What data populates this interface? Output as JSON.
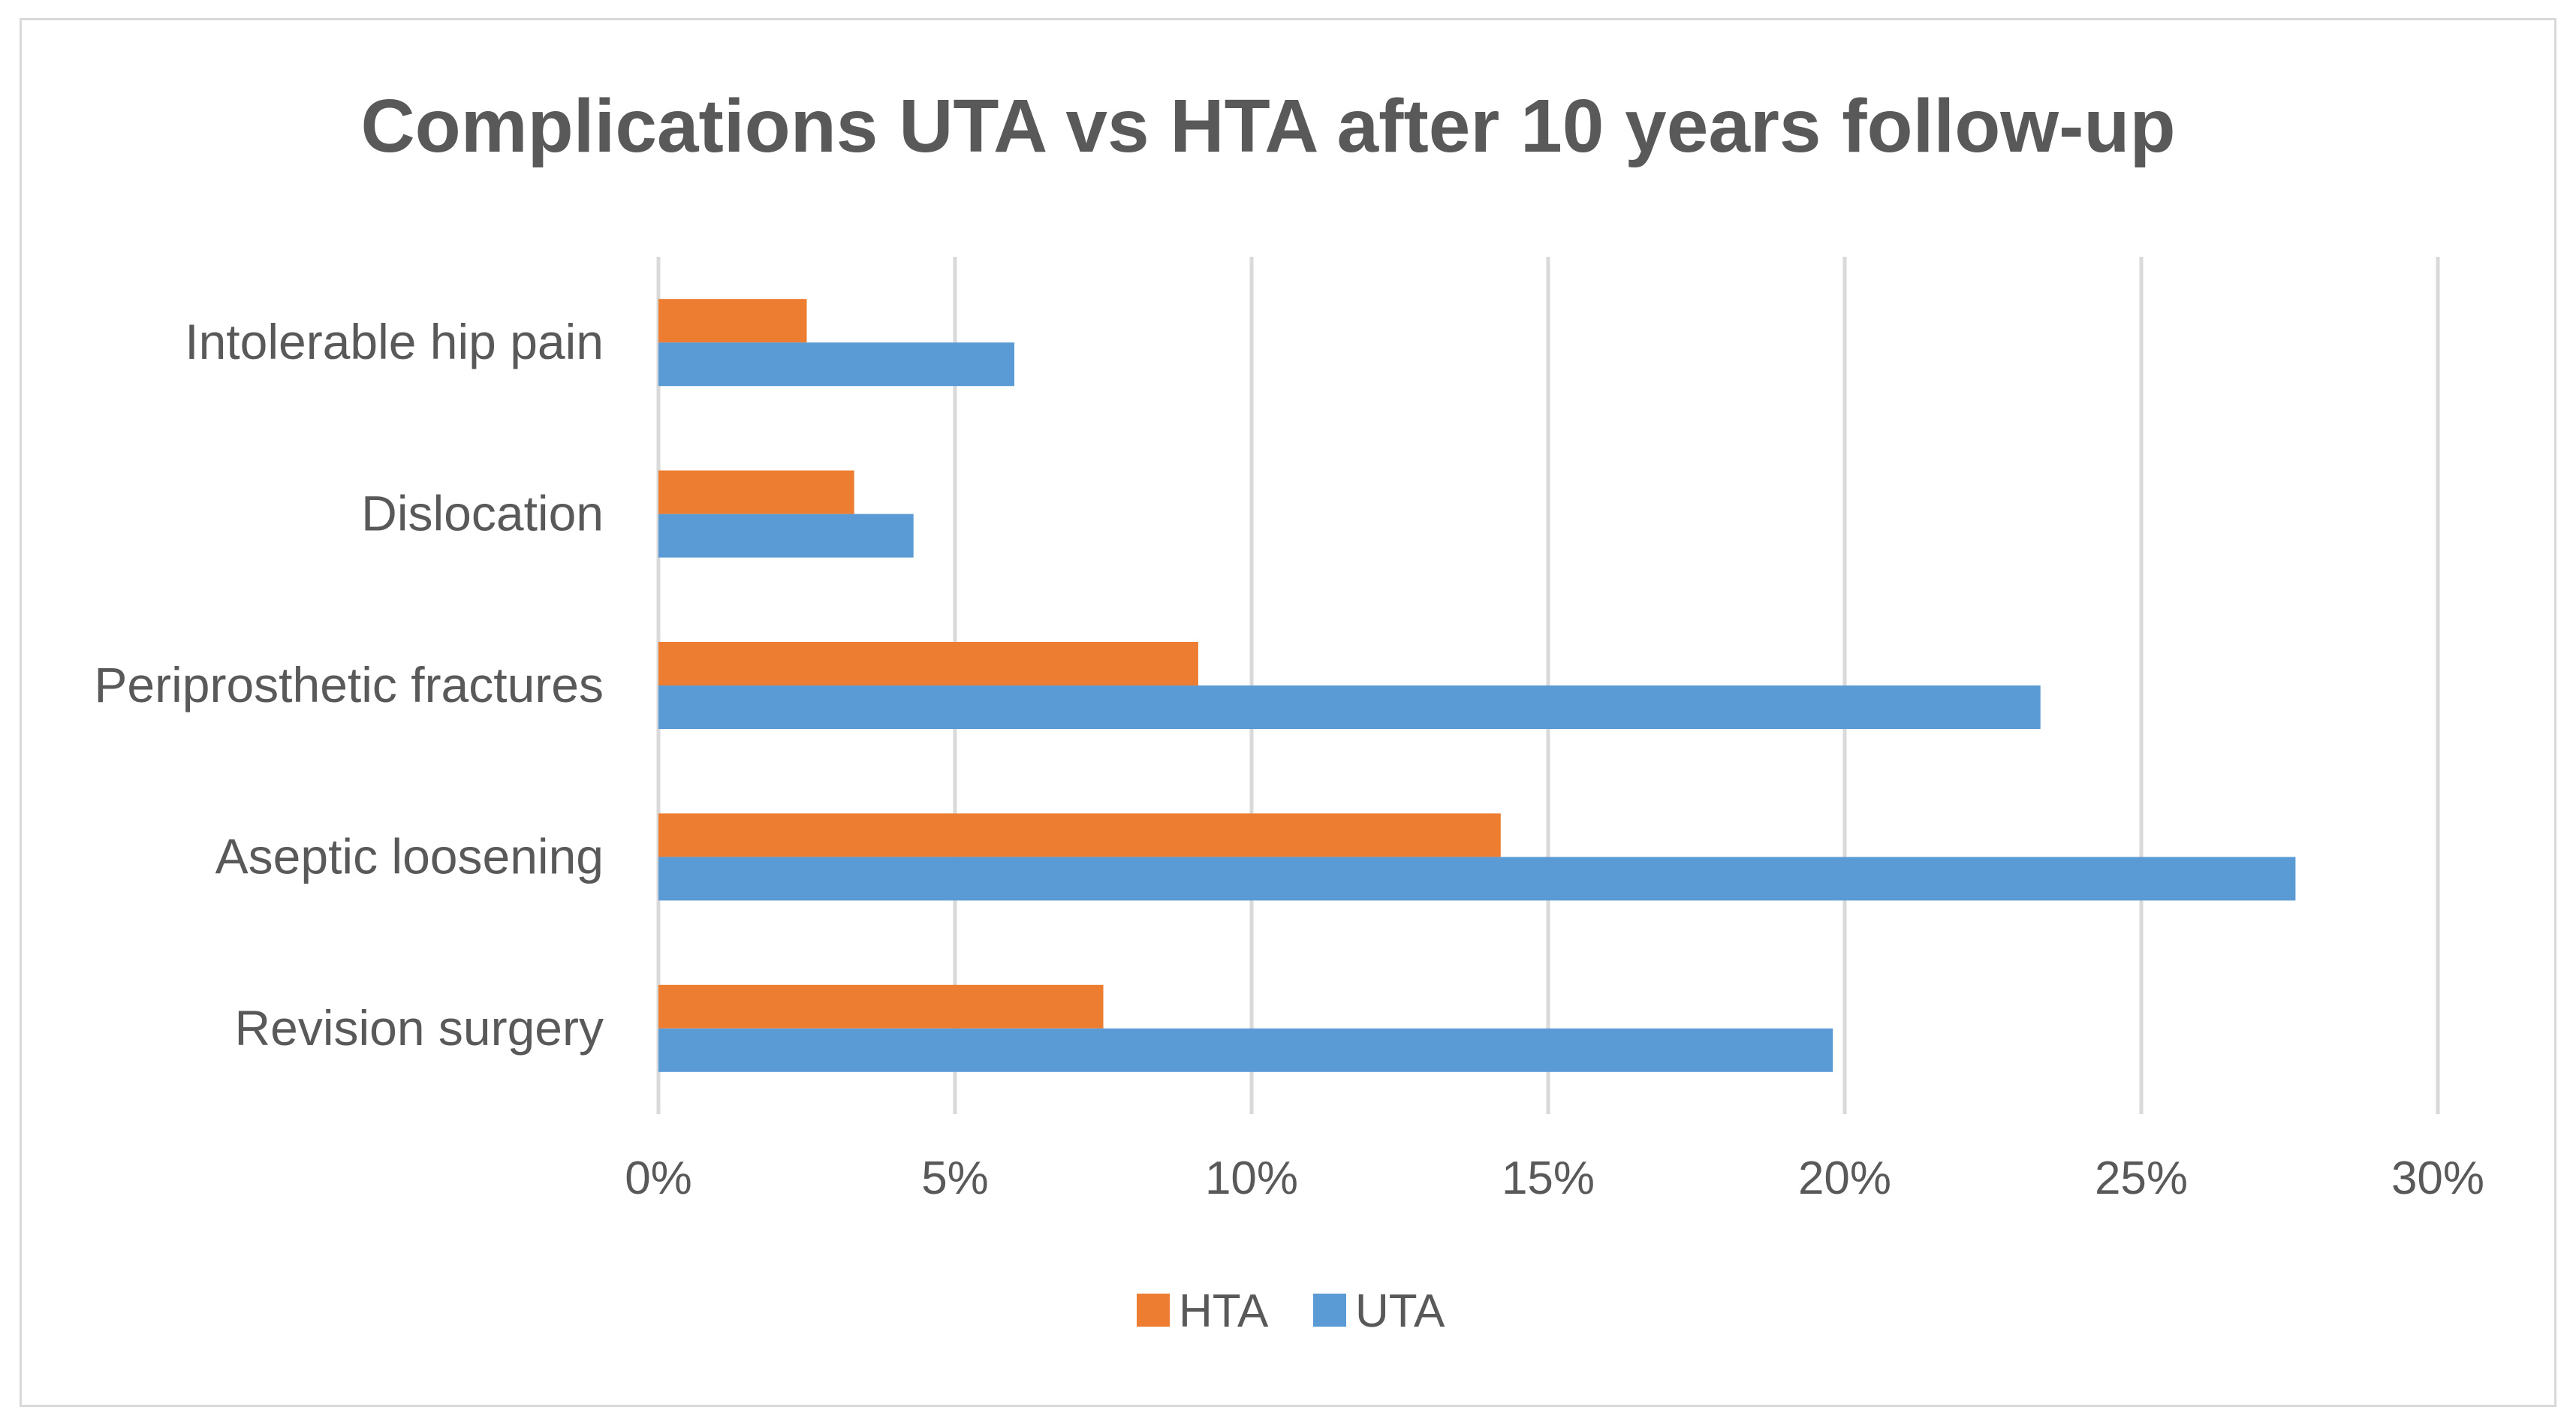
{
  "chart_data": {
    "type": "bar",
    "orientation": "horizontal",
    "title": "Complications UTA vs HTA after 10 years follow-up",
    "categories": [
      "Intolerable hip pain",
      "Dislocation",
      "Periprosthetic fractures",
      "Aseptic loosening",
      "Revision surgery"
    ],
    "series": [
      {
        "name": "HTA",
        "color": "#ed7d31",
        "values": [
          2.5,
          3.3,
          9.1,
          14.2,
          7.5
        ]
      },
      {
        "name": "UTA",
        "color": "#5b9bd5",
        "values": [
          6.0,
          4.3,
          23.3,
          27.6,
          19.8
        ]
      }
    ],
    "xlim": [
      0,
      30
    ],
    "x_ticks": [
      0,
      5,
      10,
      15,
      20,
      25,
      30
    ],
    "x_tick_labels": [
      "0%",
      "5%",
      "10%",
      "15%",
      "20%",
      "25%",
      "30%"
    ],
    "xlabel": "",
    "ylabel": "",
    "grid": "vertical",
    "gridline_color": "#d9d9d9",
    "legend": {
      "position": "bottom",
      "entries": [
        "HTA",
        "UTA"
      ]
    }
  }
}
